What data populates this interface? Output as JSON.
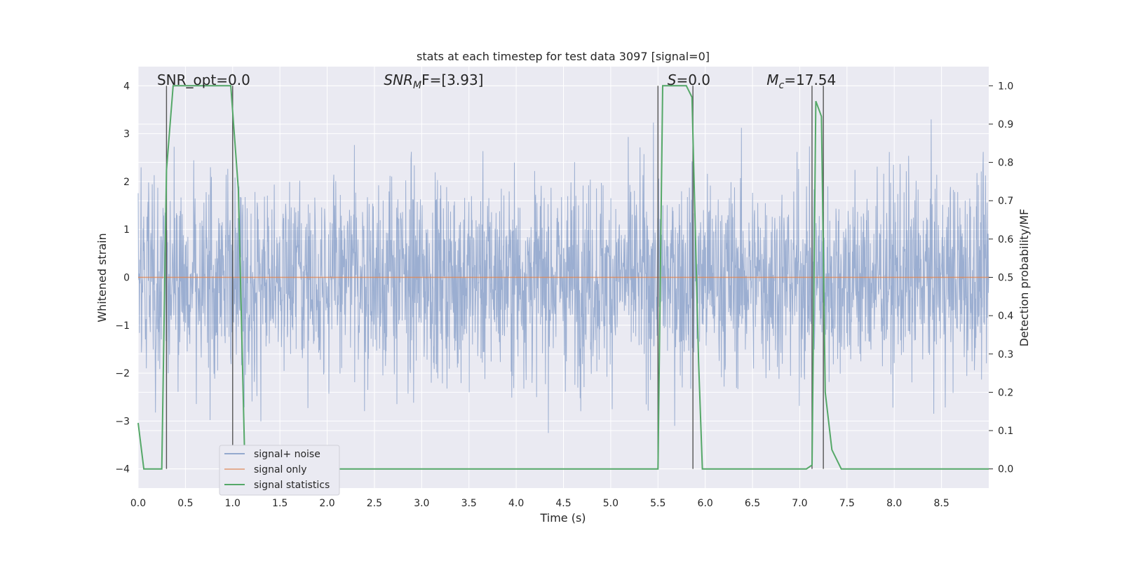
{
  "chart_data": {
    "type": "line",
    "title": "stats at each timestep for test data 3097 [signal=0]",
    "xlabel": "Time (s)",
    "ylabel": "Whitened strain",
    "ylabel_right": "Detection probability/MF",
    "xlim": [
      0.0,
      9.0
    ],
    "ylim": [
      -4.4,
      4.4
    ],
    "ylim_right": [
      -0.05,
      1.05
    ],
    "xticks": [
      0.0,
      0.5,
      1.0,
      1.5,
      2.0,
      2.5,
      3.0,
      3.5,
      4.0,
      4.5,
      5.0,
      5.5,
      6.0,
      6.5,
      7.0,
      7.5,
      8.0,
      8.5
    ],
    "xtick_labels": [
      "0.0",
      "0.5",
      "1.0",
      "1.5",
      "2.0",
      "2.5",
      "3.0",
      "3.5",
      "4.0",
      "4.5",
      "5.0",
      "5.5",
      "6.0",
      "6.5",
      "7.0",
      "7.5",
      "8.0",
      "8.5"
    ],
    "yticks": [
      -4,
      -3,
      -2,
      -1,
      0,
      1,
      2,
      3,
      4
    ],
    "ytick_labels": [
      "−4",
      "−3",
      "−2",
      "−1",
      "0",
      "1",
      "2",
      "3",
      "4"
    ],
    "yticks_right": [
      0.0,
      0.1,
      0.2,
      0.3,
      0.4,
      0.5,
      0.6,
      0.7,
      0.8,
      0.9,
      1.0
    ],
    "ytick_labels_right": [
      "0.0",
      "0.1",
      "0.2",
      "0.3",
      "0.4",
      "0.5",
      "0.6",
      "0.7",
      "0.8",
      "0.9",
      "1.0"
    ],
    "grid": true,
    "legend_position": "lower-left",
    "colors": {
      "signal_noise": "#4c72b0",
      "signal_only": "#dd8452",
      "signal_statistics": "#55a868",
      "vlines": "#555555",
      "plot_bg": "#eaeaf2",
      "grid": "#ffffff"
    },
    "series": [
      {
        "name": "signal+ noise",
        "axis": "left",
        "style": "dense noise trace",
        "approx_range": [
          -3.9,
          4.0
        ]
      },
      {
        "name": "signal only",
        "axis": "left",
        "x": [
          0.0,
          9.0
        ],
        "y": [
          0.0,
          0.0
        ]
      },
      {
        "name": "signal statistics",
        "axis": "right",
        "x": [
          0.0,
          0.06,
          0.25,
          0.3,
          0.37,
          0.98,
          1.06,
          1.13,
          5.5,
          5.55,
          5.8,
          5.86,
          5.93,
          5.97,
          7.07,
          7.13,
          7.17,
          7.23,
          7.27,
          7.34,
          7.44,
          9.0
        ],
        "y": [
          0.12,
          0.0,
          0.0,
          0.78,
          1.0,
          1.0,
          0.73,
          0.0,
          0.0,
          1.0,
          1.0,
          0.97,
          0.28,
          0.0,
          0.0,
          0.01,
          0.96,
          0.92,
          0.2,
          0.05,
          0.0,
          0.0
        ]
      }
    ],
    "vertical_lines": [
      0.3,
      1.0,
      5.5,
      5.87,
      7.13,
      7.25
    ],
    "annotations": [
      {
        "text": "SNR_opt=0.0",
        "x": 0.2
      },
      {
        "text": "SNR",
        "sub": "M",
        "tail": "F=[3.93]",
        "italic": true,
        "x": 2.6
      },
      {
        "text": "S",
        "tail": "=0.0",
        "italic": true,
        "x": 5.6
      },
      {
        "text": "M",
        "sub": "c",
        "tail": "=17.54",
        "italic": true,
        "x": 6.65
      }
    ]
  }
}
